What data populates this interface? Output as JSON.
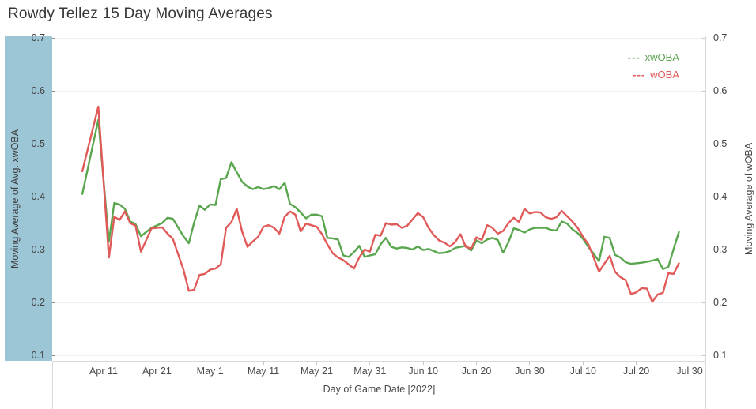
{
  "title": "Rowdy Tellez 15 Day Moving Averages",
  "legend": {
    "items": [
      {
        "dash": "---",
        "label": "xwOBA",
        "color": "#5aa64f"
      },
      {
        "dash": "---",
        "label": "wOBA",
        "color": "#e15a5a"
      }
    ]
  },
  "left_axis": {
    "title": "Moving Average of Avg. xwOBA",
    "band_color": "#9cc6d6"
  },
  "right_axis": {
    "title": "Moving Average of wOBA"
  },
  "x_axis": {
    "title": "Day of Game Date [2022]"
  },
  "chart_data": {
    "type": "line",
    "title": "Rowdy Tellez 15 Day Moving Averages",
    "xlabel": "Day of Game Date [2022]",
    "ylabel_left": "Moving Average of Avg. xwOBA",
    "ylabel_right": "Moving Average of wOBA",
    "ylim": [
      0.1,
      0.7
    ],
    "y_ticks": [
      0.1,
      0.2,
      0.3,
      0.4,
      0.5,
      0.6,
      0.7
    ],
    "x_tick_labels": [
      "Apr 11",
      "Apr 21",
      "May 1",
      "May 11",
      "May 21",
      "May 31",
      "Jun 10",
      "Jun 20",
      "Jun 30",
      "Jul 10",
      "Jul 20",
      "Jul 30"
    ],
    "grid": "horizontal",
    "legend_position": "top-right",
    "x": [
      "Apr 7",
      "Apr 10",
      "Apr 12",
      "Apr 13",
      "Apr 14",
      "Apr 15",
      "Apr 16",
      "Apr 17",
      "Apr 18",
      "Apr 20",
      "Apr 22",
      "Apr 23",
      "Apr 24",
      "Apr 26",
      "Apr 27",
      "Apr 28",
      "Apr 29",
      "Apr 30",
      "May 1",
      "May 2",
      "May 3",
      "May 4",
      "May 5",
      "May 6",
      "May 7",
      "May 8",
      "May 9",
      "May 10",
      "May 11",
      "May 12",
      "May 13",
      "May 14",
      "May 15",
      "May 16",
      "May 17",
      "May 18",
      "May 19",
      "May 20",
      "May 21",
      "May 22",
      "May 23",
      "May 24",
      "May 25",
      "May 26",
      "May 27",
      "May 28",
      "May 29",
      "May 30",
      "May 31",
      "Jun 1",
      "Jun 2",
      "Jun 3",
      "Jun 4",
      "Jun 5",
      "Jun 6",
      "Jun 7",
      "Jun 8",
      "Jun 9",
      "Jun 10",
      "Jun 11",
      "Jun 12",
      "Jun 13",
      "Jun 14",
      "Jun 15",
      "Jun 16",
      "Jun 17",
      "Jun 18",
      "Jun 19",
      "Jun 20",
      "Jun 21",
      "Jun 22",
      "Jun 23",
      "Jun 24",
      "Jun 25",
      "Jun 26",
      "Jun 27",
      "Jun 28",
      "Jun 29",
      "Jun 30",
      "Jul 1",
      "Jul 2",
      "Jul 3",
      "Jul 4",
      "Jul 5",
      "Jul 6",
      "Jul 7",
      "Jul 8",
      "Jul 9",
      "Jul 10",
      "Jul 11",
      "Jul 12",
      "Jul 13",
      "Jul 14",
      "Jul 15",
      "Jul 16",
      "Jul 17",
      "Jul 18",
      "Jul 19",
      "Jul 20",
      "Jul 21",
      "Jul 22",
      "Jul 23",
      "Jul 24",
      "Jul 25",
      "Jul 26",
      "Jul 27",
      "Jul 28"
    ],
    "series": [
      {
        "name": "xwOBA",
        "color": "#5aa64f",
        "values": [
          0.405,
          0.545,
          0.315,
          0.388,
          0.385,
          0.377,
          0.353,
          0.348,
          0.325,
          0.341,
          0.35,
          0.36,
          0.358,
          0.325,
          0.312,
          0.351,
          0.383,
          0.375,
          0.385,
          0.384,
          0.433,
          0.435,
          0.465,
          0.446,
          0.428,
          0.419,
          0.414,
          0.418,
          0.414,
          0.416,
          0.42,
          0.414,
          0.426,
          0.386,
          0.38,
          0.37,
          0.359,
          0.366,
          0.366,
          0.363,
          0.322,
          0.321,
          0.319,
          0.289,
          0.286,
          0.295,
          0.307,
          0.286,
          0.289,
          0.291,
          0.31,
          0.322,
          0.305,
          0.302,
          0.304,
          0.303,
          0.3,
          0.306,
          0.299,
          0.301,
          0.297,
          0.293,
          0.294,
          0.297,
          0.303,
          0.305,
          0.307,
          0.298,
          0.317,
          0.312,
          0.319,
          0.322,
          0.318,
          0.294,
          0.314,
          0.34,
          0.337,
          0.332,
          0.338,
          0.341,
          0.341,
          0.341,
          0.337,
          0.336,
          0.353,
          0.349,
          0.338,
          0.331,
          0.32,
          0.305,
          0.292,
          0.278,
          0.324,
          0.322,
          0.29,
          0.285,
          0.276,
          0.273,
          0.274,
          0.275,
          0.277,
          0.279,
          0.282,
          0.263,
          0.267,
          0.301,
          0.333
        ]
      },
      {
        "name": "wOBA",
        "color": "#e15a5a",
        "values": [
          0.448,
          0.57,
          0.285,
          0.362,
          0.356,
          0.372,
          0.35,
          0.345,
          0.296,
          0.34,
          0.342,
          0.33,
          0.32,
          0.262,
          0.222,
          0.224,
          0.252,
          0.254,
          0.262,
          0.264,
          0.272,
          0.341,
          0.352,
          0.377,
          0.334,
          0.305,
          0.315,
          0.324,
          0.343,
          0.346,
          0.341,
          0.33,
          0.362,
          0.372,
          0.366,
          0.334,
          0.349,
          0.346,
          0.343,
          0.329,
          0.31,
          0.293,
          0.285,
          0.28,
          0.272,
          0.264,
          0.285,
          0.3,
          0.296,
          0.328,
          0.326,
          0.35,
          0.347,
          0.348,
          0.341,
          0.345,
          0.357,
          0.369,
          0.361,
          0.341,
          0.327,
          0.317,
          0.313,
          0.306,
          0.314,
          0.329,
          0.305,
          0.302,
          0.323,
          0.318,
          0.346,
          0.341,
          0.33,
          0.335,
          0.35,
          0.36,
          0.352,
          0.377,
          0.368,
          0.371,
          0.37,
          0.361,
          0.358,
          0.361,
          0.373,
          0.363,
          0.353,
          0.341,
          0.324,
          0.31,
          0.285,
          0.258,
          0.273,
          0.288,
          0.258,
          0.248,
          0.242,
          0.216,
          0.219,
          0.227,
          0.226,
          0.201,
          0.215,
          0.218,
          0.255,
          0.254,
          0.274
        ]
      }
    ]
  }
}
